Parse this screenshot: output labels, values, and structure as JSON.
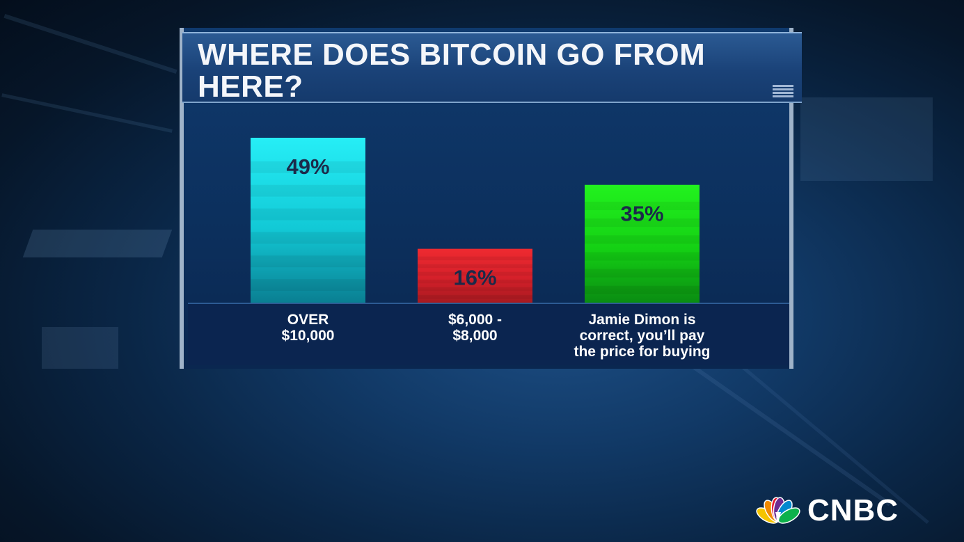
{
  "chart_data": {
    "type": "bar",
    "title": "WHERE DOES BITCOIN GO FROM HERE?",
    "categories": [
      "OVER $10,000",
      "$6,000 - $8,000",
      "Jamie Dimon is correct, you’ll pay the price for buying"
    ],
    "category_lines": [
      [
        "OVER",
        "$10,000"
      ],
      [
        "$6,000 -",
        "$8,000"
      ],
      [
        "Jamie Dimon is",
        "correct, you’ll pay",
        "the price for buying"
      ]
    ],
    "values": [
      49,
      16,
      35
    ],
    "value_labels": [
      "49%",
      "16%",
      "35%"
    ],
    "unit": "%",
    "ylim": [
      0,
      49
    ],
    "grid": false,
    "legend": "none",
    "colors": [
      "#12c9d6",
      "#d5202a",
      "#14d014"
    ],
    "color_tops": [
      "#26eef6",
      "#ee2a30",
      "#22f21e"
    ],
    "color_bottoms": [
      "#0a7f92",
      "#a71a20",
      "#0a8c12"
    ]
  },
  "brand": {
    "name": "CNBC",
    "logo_icon": "peacock-icon",
    "peacock_colors": [
      "#f5c400",
      "#f08a00",
      "#e5172f",
      "#6c2c91",
      "#0089cf",
      "#0db14b"
    ]
  }
}
